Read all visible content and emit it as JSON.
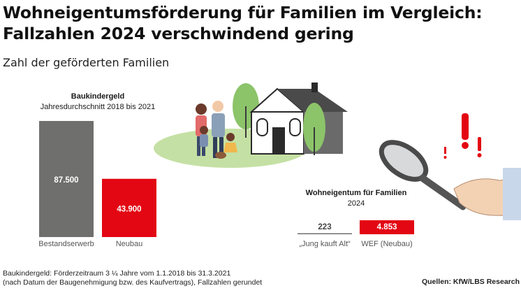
{
  "title_line1": "Wohneigentumsförderung für Familien im Vergleich:",
  "title_line2": "Fallzahlen 2024 verschwindend gering",
  "subtitle": "Zahl der geförderten Familien",
  "chart_data": [
    {
      "type": "bar",
      "title": "Baukindergeld",
      "subtitle": "Jahresdurchschnitt 2018 bis 2021",
      "categories": [
        "Bestandserwerb",
        "Neubau"
      ],
      "values": [
        87500,
        43900
      ],
      "value_labels": [
        "87.500",
        "43.900"
      ],
      "colors": [
        "#6f6f6e",
        "#e30613"
      ]
    },
    {
      "type": "bar",
      "title": "Wohneigentum für Familien",
      "subtitle": "2024",
      "categories": [
        "„Jung kauft Alt“",
        "WEF (Neubau)"
      ],
      "values": [
        223,
        4853
      ],
      "value_labels": [
        "223",
        "4.853"
      ],
      "colors": [
        "#6f6f6e",
        "#e30613"
      ]
    }
  ],
  "footnote_line1": "Baukindergeld: Förderzeitraum 3 ¼ Jahre vom 1.1.2018 bis 31.3.2021",
  "footnote_line2": "(nach Datum der Baugenehmigung bzw. des Kaufvertrags), Fallzahlen gerundet",
  "source": "Quellen: KfW/LBS Research"
}
